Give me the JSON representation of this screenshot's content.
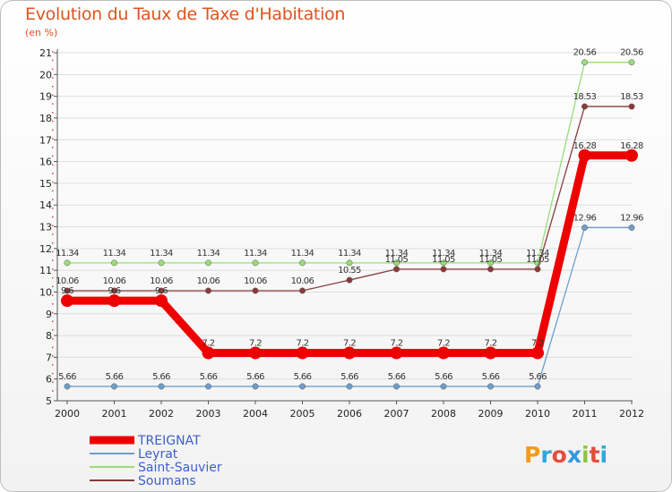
{
  "chart_data": {
    "type": "line",
    "title": "Evolution du Taux de Taxe d'Habitation",
    "subtitle": "(en %)",
    "xlabel": "",
    "ylabel": "",
    "ylim": [
      5,
      21
    ],
    "categories": [
      "2000",
      "2001",
      "2002",
      "2003",
      "2004",
      "2005",
      "2006",
      "2007",
      "2008",
      "2009",
      "2010",
      "2011",
      "2012"
    ],
    "series": [
      {
        "name": "TREIGNAT",
        "color": "#ee0000",
        "values": [
          9.6,
          9.6,
          9.6,
          7.2,
          7.2,
          7.2,
          7.2,
          7.2,
          7.2,
          7.2,
          7.2,
          16.28,
          16.28
        ],
        "labels": [
          "9.6",
          "9.6",
          "9.6",
          "7.2",
          "7.2",
          "7.2",
          "7.2",
          "7.2",
          "7.2",
          "7.2",
          "7.2",
          "16.28",
          "16.28"
        ]
      },
      {
        "name": "Leyrat",
        "color": "#6f9fca",
        "values": [
          5.66,
          5.66,
          5.66,
          5.66,
          5.66,
          5.66,
          5.66,
          5.66,
          5.66,
          5.66,
          5.66,
          12.96,
          12.96
        ],
        "labels": [
          "5.66",
          "5.66",
          "5.66",
          "5.66",
          "5.66",
          "5.66",
          "5.66",
          "5.66",
          "5.66",
          "5.66",
          "5.66",
          "12.96",
          "12.96"
        ]
      },
      {
        "name": "Saint-Sauvier",
        "color": "#99dd77",
        "values": [
          11.34,
          11.34,
          11.34,
          11.34,
          11.34,
          11.34,
          11.34,
          11.34,
          11.34,
          11.34,
          11.34,
          20.56,
          20.56
        ],
        "labels": [
          "11.34",
          "11.34",
          "11.34",
          "11.34",
          "11.34",
          "11.34",
          "11.34",
          "11.34",
          "11.34",
          "11.34",
          "11.34",
          "20.56",
          "20.56"
        ]
      },
      {
        "name": "Soumans",
        "color": "#8b3a3a",
        "values": [
          10.06,
          10.06,
          10.06,
          10.06,
          10.06,
          10.06,
          10.55,
          11.05,
          11.05,
          11.05,
          11.05,
          18.53,
          18.53
        ],
        "labels": [
          "10.06",
          "10.06",
          "10.06",
          "10.06",
          "10.06",
          "10.06",
          "10.55",
          "11.05",
          "11.05",
          "11.05",
          "11.05",
          "18.53",
          "18.53"
        ]
      }
    ]
  },
  "logo": {
    "text": "Proxiti",
    "colors": [
      "#f39c12",
      "#2ea8dc",
      "#e74c3c",
      "#3498db",
      "#8cc63f",
      "#e74c3c",
      "#2ea8dc"
    ]
  }
}
